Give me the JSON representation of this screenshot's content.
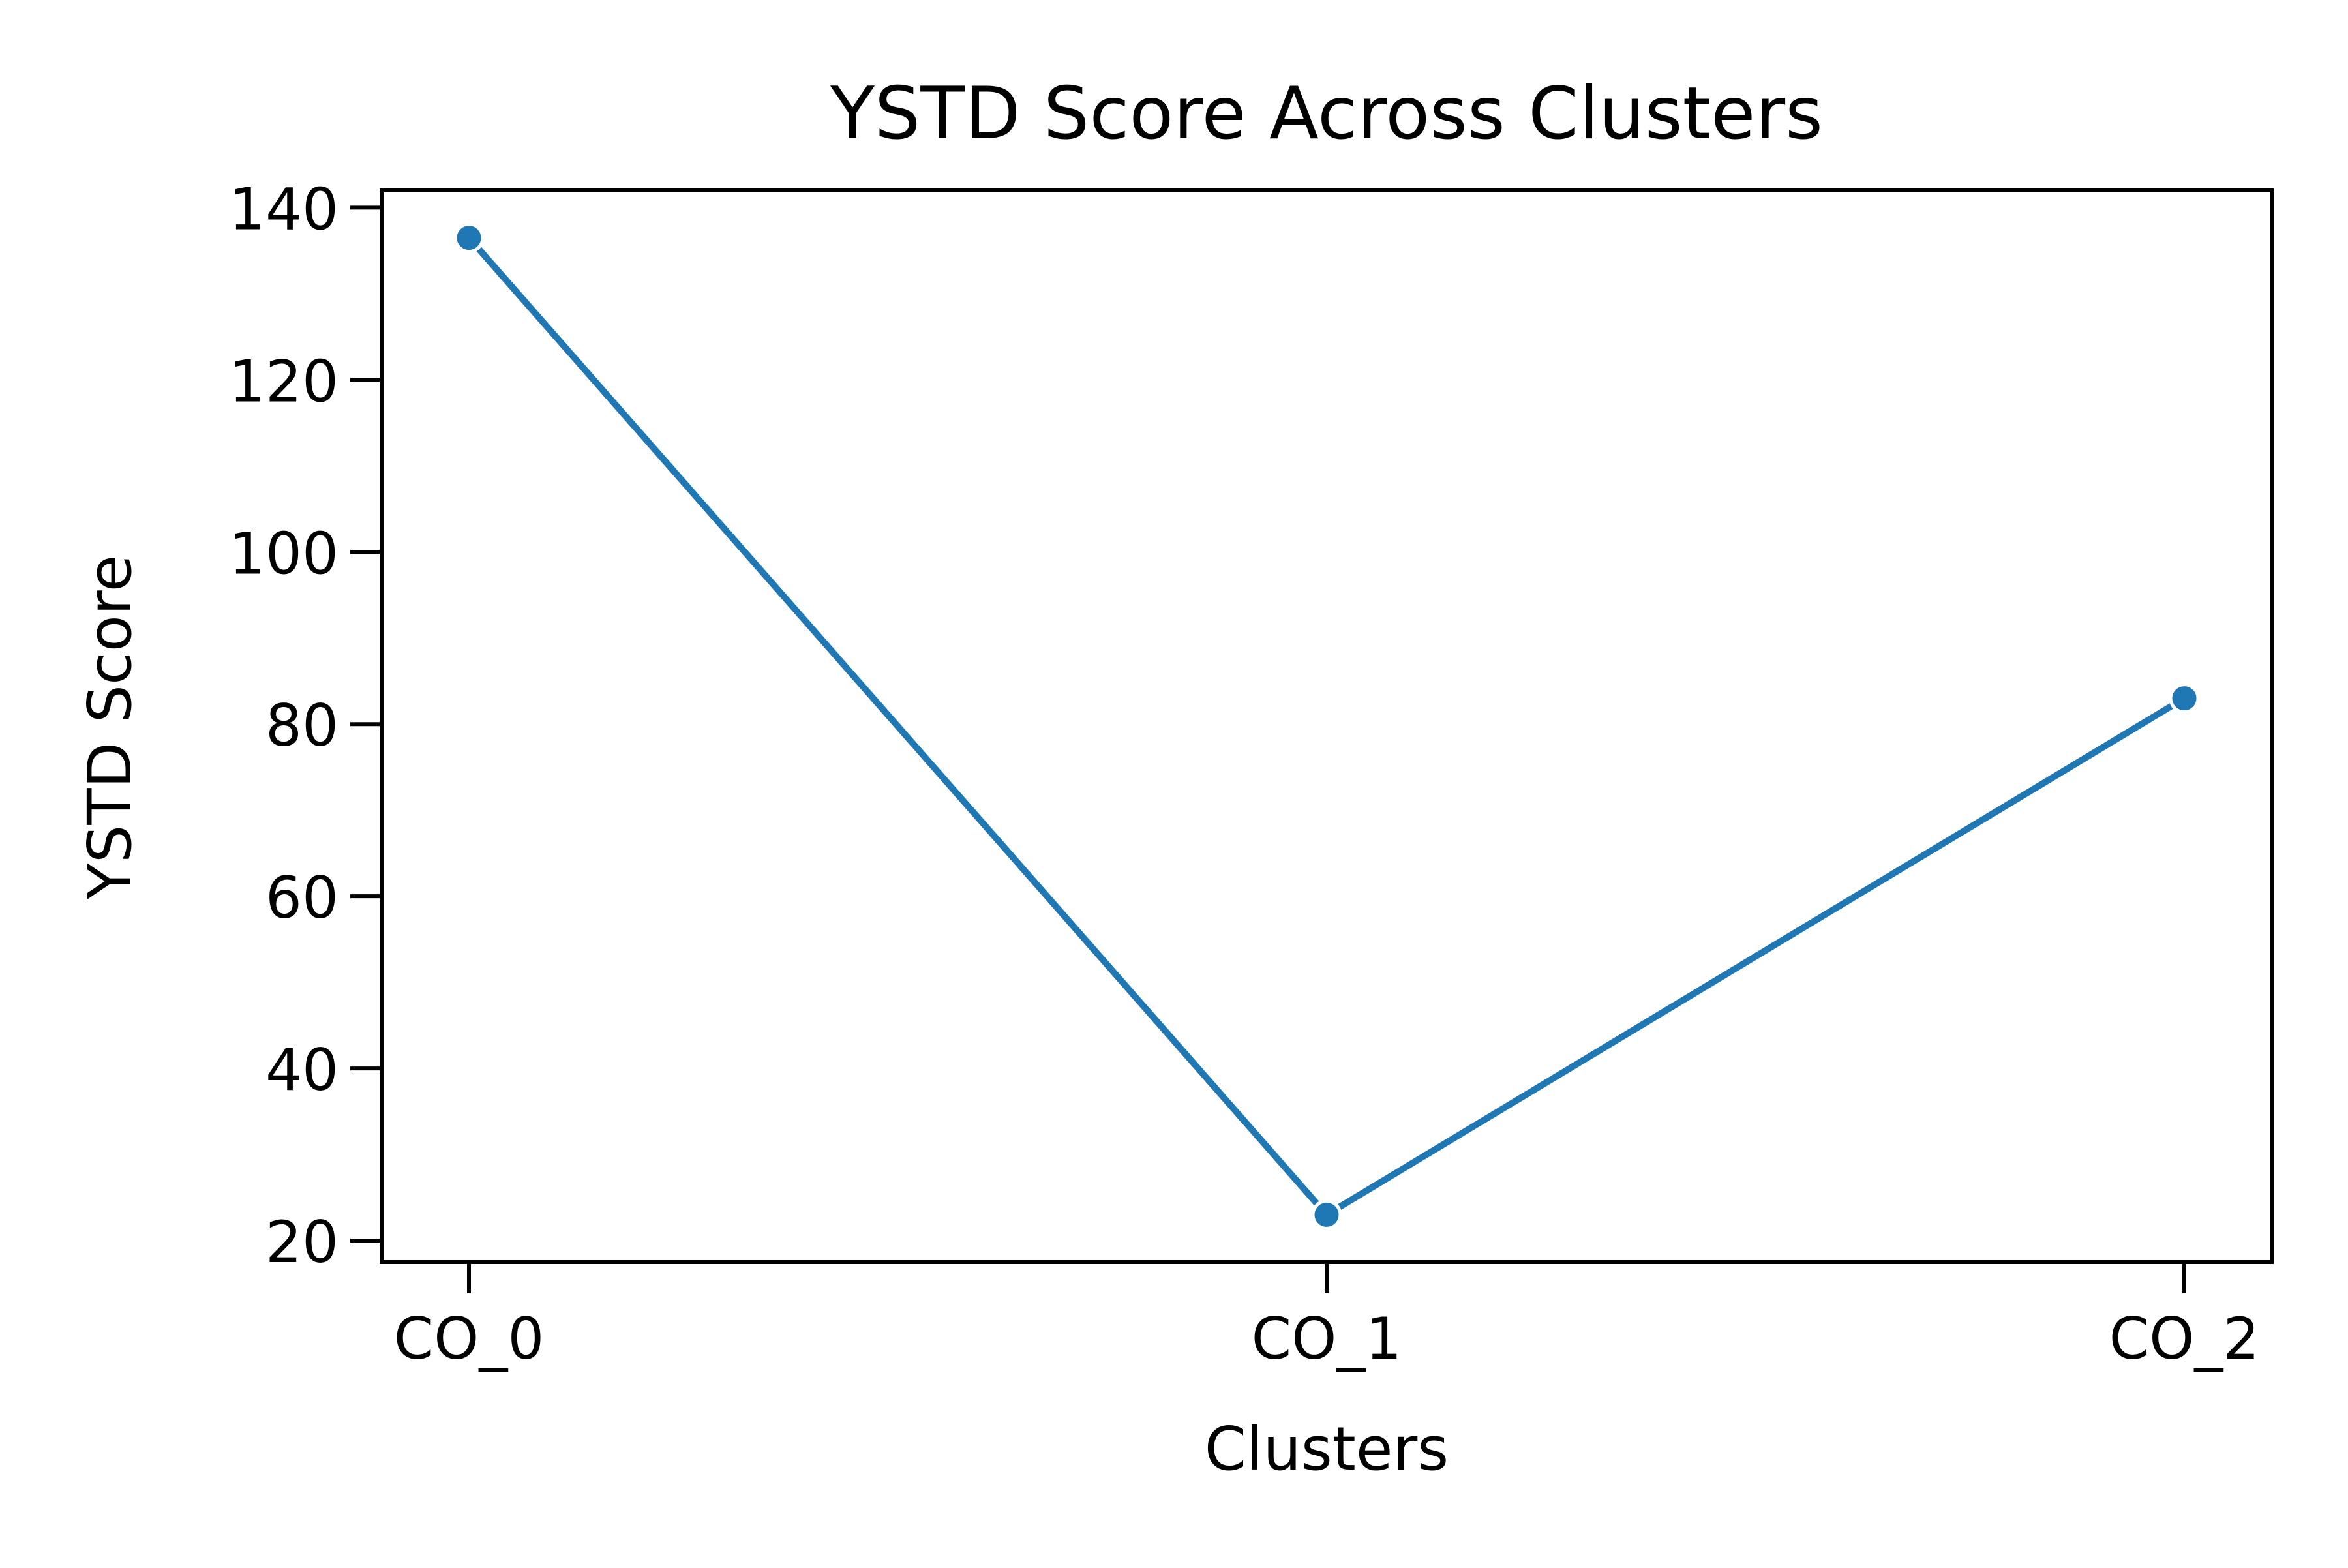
{
  "chart_data": {
    "type": "line",
    "title": "YSTD Score Across Clusters",
    "xlabel": "Clusters",
    "ylabel": "YSTD Score",
    "categories": [
      "CO_0",
      "CO_1",
      "CO_2"
    ],
    "series": [
      {
        "values": [
          136.5,
          23.0,
          83.0
        ],
        "color": "#1f77b4",
        "marker": "circle"
      }
    ],
    "ylim": [
      17.5,
      142.0
    ],
    "yticks": [
      20,
      40,
      60,
      80,
      100,
      120,
      140
    ],
    "grid": false,
    "legend": false
  }
}
